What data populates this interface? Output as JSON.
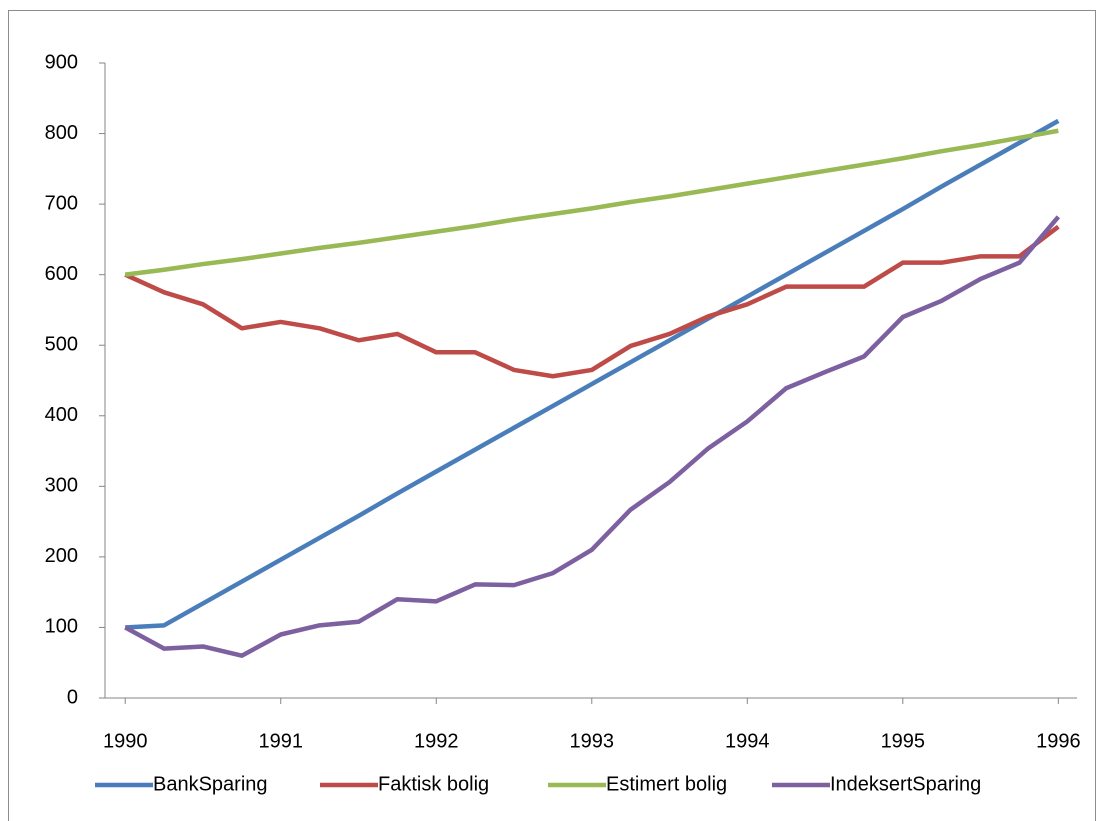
{
  "chart_data": {
    "type": "line",
    "x": [
      1990,
      1990.25,
      1990.5,
      1990.75,
      1991,
      1991.25,
      1991.5,
      1991.75,
      1992,
      1992.25,
      1992.5,
      1992.75,
      1993,
      1993.25,
      1993.5,
      1993.75,
      1994,
      1994.25,
      1994.5,
      1994.75,
      1995,
      1995.25,
      1995.5,
      1995.75,
      1996
    ],
    "series": [
      {
        "name": "BankSparing",
        "color": "#4a7ebb",
        "values": [
          100,
          103,
          134,
          165,
          196,
          227,
          258,
          290,
          321,
          352,
          383,
          414,
          445,
          476,
          507,
          538,
          569,
          600,
          631,
          662,
          693,
          725,
          756,
          787,
          818
        ]
      },
      {
        "name": "Faktisk bolig",
        "color": "#be4b48",
        "values": [
          600,
          575,
          558,
          524,
          533,
          524,
          507,
          516,
          490,
          490,
          465,
          456,
          465,
          499,
          516,
          541,
          558,
          583,
          583,
          583,
          617,
          617,
          626,
          626,
          668
        ]
      },
      {
        "name": "Estimert bolig",
        "color": "#98b954",
        "values": [
          600,
          607,
          615,
          622,
          630,
          638,
          645,
          653,
          661,
          669,
          678,
          686,
          694,
          703,
          711,
          720,
          729,
          738,
          747,
          756,
          765,
          775,
          784,
          794,
          804
        ]
      },
      {
        "name": "IndeksertSparing",
        "color": "#7d60a0",
        "values": [
          100,
          70,
          73,
          60,
          90,
          103,
          108,
          140,
          137,
          161,
          160,
          177,
          210,
          267,
          306,
          354,
          392,
          439,
          462,
          484,
          540,
          563,
          594,
          617,
          682
        ]
      }
    ],
    "xlim": [
      1989.87,
      1996.12
    ],
    "xticks": [
      1990,
      1991,
      1992,
      1993,
      1994,
      1995,
      1996
    ],
    "ylim": [
      0,
      900
    ],
    "yticks": [
      0,
      100,
      200,
      300,
      400,
      500,
      600,
      700,
      800,
      900
    ],
    "grid": false,
    "legend": "bottom"
  }
}
